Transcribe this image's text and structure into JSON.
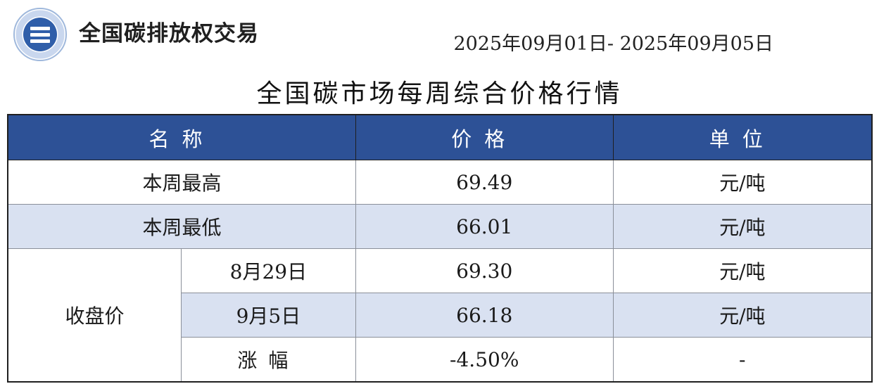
{
  "header": {
    "brand": "全国碳排放权交易",
    "date_range": "2025年09月01日- 2025年09月05日",
    "title": "全国碳市场每周综合价格行情"
  },
  "colors": {
    "header_bg": "#2d5196",
    "row_shade": "#d9e1f1",
    "logo_blue": "#2f5ea9"
  },
  "table": {
    "columns": [
      "名称",
      "价格",
      "单位"
    ],
    "rows": [
      {
        "name": "本周最高",
        "price": "69.49",
        "unit": "元/吨"
      },
      {
        "name": "本周最低",
        "price": "66.01",
        "unit": "元/吨"
      }
    ],
    "closing": {
      "label": "收盘价",
      "rows": [
        {
          "date": "8月29日",
          "price": "69.30",
          "unit": "元/吨"
        },
        {
          "date": "9月5日",
          "price": "66.18",
          "unit": "元/吨"
        },
        {
          "date": "涨幅",
          "price": "-4.50%",
          "unit": "-"
        }
      ]
    }
  }
}
